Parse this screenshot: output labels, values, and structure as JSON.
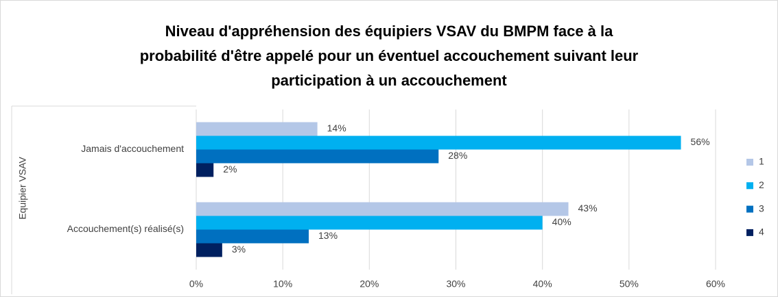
{
  "chart_data": {
    "type": "bar",
    "orientation": "horizontal",
    "title": [
      "Niveau d'appréhension des équipiers VSAV du BMPM face à la",
      "probabilité d'être appelé pour un éventuel accouchement suivant leur",
      "participation à un accouchement"
    ],
    "y_axis_label": "Equipier VSAV",
    "categories": [
      "Jamais d'accouchement",
      "Accouchement(s) réalisé(s)"
    ],
    "series": [
      {
        "name": "1",
        "color": "#b4c7e7",
        "values": [
          14,
          43
        ],
        "value_labels": [
          "14%",
          "43%"
        ]
      },
      {
        "name": "2",
        "color": "#00b0f0",
        "values": [
          56,
          40
        ],
        "value_labels": [
          "56%",
          "40%"
        ]
      },
      {
        "name": "3",
        "color": "#0070c0",
        "values": [
          28,
          13
        ],
        "value_labels": [
          "28%",
          "13%"
        ]
      },
      {
        "name": "4",
        "color": "#002060",
        "values": [
          2,
          3
        ],
        "value_labels": [
          "2%",
          "3%"
        ]
      }
    ],
    "xlim": [
      0,
      60
    ],
    "xticks": [
      {
        "value": 0,
        "label": "0%"
      },
      {
        "value": 10,
        "label": "10%"
      },
      {
        "value": 20,
        "label": "20%"
      },
      {
        "value": 30,
        "label": "30%"
      },
      {
        "value": 40,
        "label": "40%"
      },
      {
        "value": 50,
        "label": "50%"
      },
      {
        "value": 60,
        "label": "60%"
      }
    ],
    "grid": true,
    "legend": "right"
  }
}
